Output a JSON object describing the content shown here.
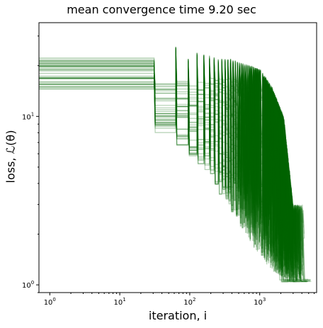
{
  "chart_data": {
    "type": "line",
    "title": "mean convergence time 9.20 sec",
    "xlabel": "iteration, i",
    "ylabel": "loss, ℒ(θ)",
    "xscale": "log",
    "yscale": "log",
    "xlim": [
      0.7,
      6500
    ],
    "ylim": [
      0.9,
      36
    ],
    "xticks": [
      {
        "value": 1,
        "base": "10",
        "exp": "0"
      },
      {
        "value": 10,
        "base": "10",
        "exp": "1"
      },
      {
        "value": 100,
        "base": "10",
        "exp": "2"
      },
      {
        "value": 1000,
        "base": "10",
        "exp": "3"
      }
    ],
    "yticks": [
      {
        "value": 1,
        "base": "10",
        "exp": "0"
      },
      {
        "value": 10,
        "base": "10",
        "exp": "1"
      }
    ],
    "grid": false,
    "series_color": "#006400",
    "n_runs": 40,
    "jump_iterations": [
      31,
      63,
      95,
      127,
      159,
      191,
      223,
      255,
      287,
      319,
      351,
      383,
      415,
      447,
      479,
      511,
      543,
      575,
      607,
      639,
      671,
      703,
      735,
      767,
      799,
      831,
      863,
      895,
      927,
      959,
      991,
      1023
    ],
    "initial_loss_range": [
      14.5,
      22.5
    ],
    "final_loss_range": [
      1.04,
      1.08
    ],
    "convergence_iteration_range": [
      1800,
      4200
    ],
    "step_envelope": [
      {
        "i": 31,
        "low": 8.0,
        "high": 16.0,
        "spike": 20.0
      },
      {
        "i": 63,
        "low": 6.5,
        "high": 16.5,
        "spike": 26.0
      },
      {
        "i": 95,
        "low": 5.8,
        "high": 15.5,
        "spike": 22.0
      },
      {
        "i": 127,
        "low": 5.2,
        "high": 16.5,
        "spike": 24.0
      },
      {
        "i": 191,
        "low": 4.3,
        "high": 17.0,
        "spike": 23.0
      },
      {
        "i": 255,
        "low": 3.4,
        "high": 17.0,
        "spike": 22.0
      },
      {
        "i": 383,
        "low": 2.7,
        "high": 17.0,
        "spike": 22.0
      },
      {
        "i": 511,
        "low": 2.2,
        "high": 16.5,
        "spike": 21.0
      },
      {
        "i": 767,
        "low": 1.7,
        "high": 16.0,
        "spike": 20.0
      },
      {
        "i": 1023,
        "low": 1.45,
        "high": 15.0,
        "spike": 19.0
      },
      {
        "i": 1500,
        "low": 1.2,
        "high": 13.0,
        "spike": 15.0
      },
      {
        "i": 2200,
        "low": 1.1,
        "high": 9.0,
        "spike": 10.0
      },
      {
        "i": 3000,
        "low": 1.06,
        "high": 2.5,
        "spike": 3.0
      }
    ]
  }
}
